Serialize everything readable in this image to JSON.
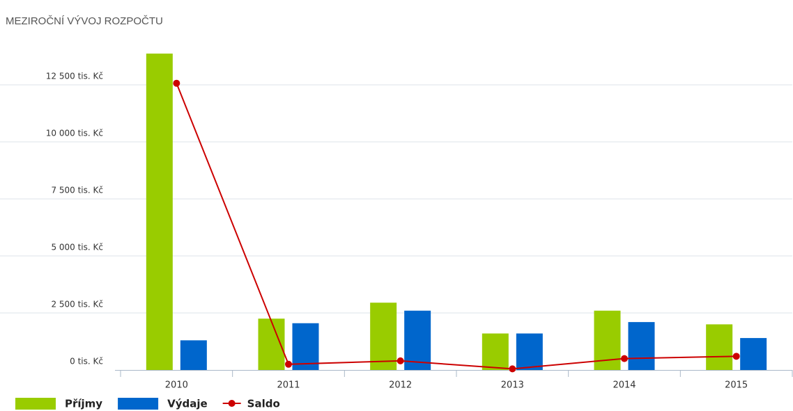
{
  "chart_data": {
    "type": "bar",
    "title": "MEZIROČNÍ VÝVOJ ROZPOČTU",
    "categories": [
      "2010",
      "2011",
      "2012",
      "2013",
      "2014",
      "2015"
    ],
    "series": [
      {
        "name": "Příjmy",
        "type": "bar",
        "color": "#99cc00",
        "values": [
          13870,
          2250,
          2950,
          1600,
          2600,
          2000
        ]
      },
      {
        "name": "Výdaje",
        "type": "bar",
        "color": "#0066cc",
        "values": [
          1300,
          2050,
          2600,
          1600,
          2100,
          1400
        ]
      },
      {
        "name": "Saldo",
        "type": "line",
        "color": "#cc0000",
        "values": [
          12570,
          250,
          400,
          50,
          500,
          600
        ]
      }
    ],
    "ylim": [
      0,
      15000
    ],
    "yticks": [
      {
        "value": 0,
        "label": "0 tis. Kč"
      },
      {
        "value": 2500,
        "label": "2 500 tis. Kč"
      },
      {
        "value": 5000,
        "label": "5 000 tis. Kč"
      },
      {
        "value": 7500,
        "label": "7 500 tis. Kč"
      },
      {
        "value": 10000,
        "label": "10 000 tis. Kč"
      },
      {
        "value": 12500,
        "label": "12 500 tis. Kč"
      }
    ],
    "grid": true
  }
}
